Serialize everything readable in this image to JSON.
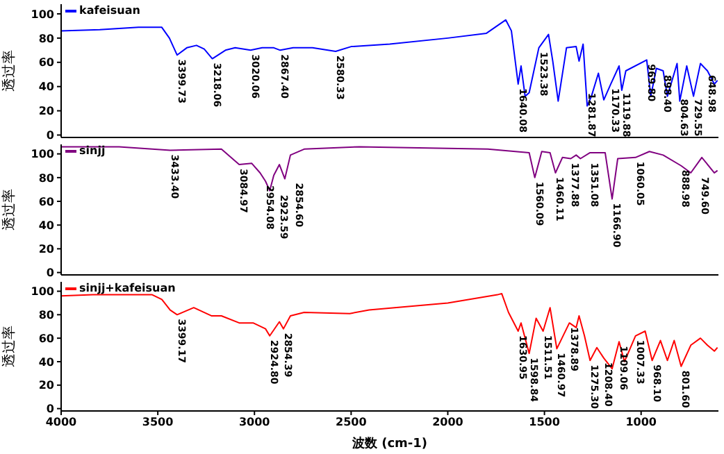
{
  "chart_data": [
    {
      "type": "line",
      "ylabel": "透过率",
      "legend": "top left",
      "tick_labels": "y",
      "marker": "none",
      "xlim": [
        4000,
        600
      ],
      "xticks": [
        4000,
        3500,
        3000,
        2500,
        2000,
        1500,
        1000
      ],
      "ylim": [
        -2,
        108
      ],
      "yticks": [
        0,
        20,
        40,
        60,
        80,
        100
      ],
      "series": [
        {
          "name": "kafeisuan",
          "color": "#0000ff",
          "x": [
            4000,
            3800,
            3600,
            3480,
            3440,
            3400,
            3350,
            3300,
            3260,
            3218,
            3150,
            3100,
            3020,
            2960,
            2900,
            2867,
            2800,
            2700,
            2580,
            2500,
            2300,
            2000,
            1800,
            1700,
            1671,
            1636,
            1621,
            1600,
            1579,
            1529,
            1479,
            1457,
            1429,
            1386,
            1336,
            1321,
            1300,
            1279,
            1257,
            1221,
            1193,
            1157,
            1114,
            1100,
            1079,
            971,
            950,
            921,
            886,
            864,
            814,
            800,
            764,
            729,
            693,
            657,
            621,
            605
          ],
          "values": [
            86,
            87,
            89,
            89,
            80,
            66,
            72,
            74,
            71,
            63,
            70,
            72,
            70,
            72,
            72,
            70,
            72,
            72,
            69,
            73,
            75,
            80,
            84,
            95,
            86,
            42,
            57,
            32,
            35,
            72,
            83,
            61,
            28,
            72,
            73,
            61,
            75,
            24,
            32,
            51,
            29,
            42,
            57,
            37,
            53,
            62,
            32,
            55,
            53,
            32,
            59,
            28,
            57,
            32,
            59,
            53,
            42,
            45
          ]
        }
      ],
      "annotations": [
        {
          "text": "3399.73",
          "x": 3400,
          "y": 66
        },
        {
          "text": "3218.06",
          "x": 3218,
          "y": 63
        },
        {
          "text": "3020.06",
          "x": 3020,
          "y": 70
        },
        {
          "text": "2867.40",
          "x": 2867,
          "y": 70
        },
        {
          "text": "2580.33",
          "x": 2580,
          "y": 69
        },
        {
          "text": "1640.08",
          "x": 1636,
          "y": 42
        },
        {
          "text": "1523.38",
          "x": 1529,
          "y": 72
        },
        {
          "text": "1281.87",
          "x": 1279,
          "y": 24
        },
        {
          "text": "1170.33",
          "x": 1157,
          "y": 42
        },
        {
          "text": "1119.88",
          "x": 1100,
          "y": 37
        },
        {
          "text": "969.80",
          "x": 971,
          "y": 62
        },
        {
          "text": "898.40",
          "x": 886,
          "y": 53
        },
        {
          "text": "804.63",
          "x": 800,
          "y": 28
        },
        {
          "text": "729.55",
          "x": 729,
          "y": 32
        },
        {
          "text": "648.98",
          "x": 657,
          "y": 53
        }
      ]
    },
    {
      "type": "line",
      "ylabel": "透过率",
      "legend": "top left",
      "tick_labels": "y",
      "marker": "none",
      "xlim": [
        4000,
        600
      ],
      "xticks": [
        4000,
        3500,
        3000,
        2500,
        2000,
        1500,
        1000
      ],
      "ylim": [
        -2,
        108
      ],
      "yticks": [
        0,
        20,
        40,
        60,
        80,
        100
      ],
      "series": [
        {
          "name": "sinjj",
          "color": "#800080",
          "x": [
            4000,
            3700,
            3436,
            3171,
            3079,
            3014,
            2971,
            2943,
            2921,
            2900,
            2871,
            2843,
            2814,
            2743,
            2457,
            1793,
            1579,
            1550,
            1514,
            1471,
            1443,
            1407,
            1364,
            1336,
            1314,
            1264,
            1186,
            1150,
            1121,
            1029,
            957,
            886,
            793,
            743,
            686,
            621,
            605
          ],
          "values": [
            106,
            106,
            103,
            104,
            91,
            92,
            84,
            77,
            69,
            82,
            91,
            79,
            99,
            104,
            106,
            104,
            101,
            80,
            102,
            101,
            84,
            97,
            96,
            99,
            96,
            101,
            101,
            62,
            96,
            97,
            102,
            99,
            90,
            84,
            97,
            84,
            86
          ]
        }
      ],
      "annotations": [
        {
          "text": "3433.40",
          "x": 3436,
          "y": 103
        },
        {
          "text": "3084.97",
          "x": 3079,
          "y": 91
        },
        {
          "text": "2954.08",
          "x": 2943,
          "y": 77
        },
        {
          "text": "2923.59",
          "x": 2921,
          "y": 69
        },
        {
          "text": "2854.60",
          "x": 2843,
          "y": 79
        },
        {
          "text": "1560.09",
          "x": 1550,
          "y": 80
        },
        {
          "text": "1460.11",
          "x": 1443,
          "y": 84
        },
        {
          "text": "1377.88",
          "x": 1364,
          "y": 96
        },
        {
          "text": "1351.08",
          "x": 1314,
          "y": 96
        },
        {
          "text": "1166.90",
          "x": 1150,
          "y": 62
        },
        {
          "text": "1060.05",
          "x": 1029,
          "y": 97
        },
        {
          "text": "888.98",
          "x": 793,
          "y": 90
        },
        {
          "text": "749.60",
          "x": 743,
          "y": 84
        }
      ]
    },
    {
      "type": "line",
      "xlabel": "波数 (cm-1)",
      "ylabel": "透过率",
      "legend": "top left",
      "marker": "none",
      "xlim": [
        4000,
        600
      ],
      "xticks": [
        4000,
        3500,
        3000,
        2500,
        2000,
        1500,
        1000
      ],
      "ylim": [
        -2,
        108
      ],
      "yticks": [
        0,
        20,
        40,
        60,
        80,
        100
      ],
      "series": [
        {
          "name": "sinjj+kafeisuan",
          "color": "#ff0000",
          "x": [
            4000,
            3836,
            3529,
            3479,
            3436,
            3400,
            3314,
            3221,
            3171,
            3079,
            3007,
            2943,
            2921,
            2871,
            2850,
            2814,
            2743,
            2507,
            2407,
            2000,
            1743,
            1721,
            1686,
            1636,
            1621,
            1579,
            1543,
            1507,
            1471,
            1436,
            1371,
            1336,
            1321,
            1293,
            1264,
            1229,
            1193,
            1150,
            1114,
            1086,
            1029,
            979,
            943,
            900,
            864,
            829,
            793,
            743,
            693,
            657,
            621,
            605
          ],
          "values": [
            96,
            97,
            97,
            93,
            84,
            80,
            86,
            79,
            79,
            73,
            73,
            68,
            62,
            74,
            68,
            79,
            82,
            81,
            84,
            90,
            97,
            98,
            82,
            66,
            73,
            47,
            77,
            66,
            86,
            51,
            73,
            69,
            79,
            62,
            41,
            52,
            43,
            34,
            57,
            40,
            62,
            66,
            41,
            58,
            41,
            58,
            36,
            54,
            60,
            54,
            49,
            52
          ]
        }
      ],
      "annotations": [
        {
          "text": "3399.17",
          "x": 3400,
          "y": 80
        },
        {
          "text": "2924.80",
          "x": 2921,
          "y": 62
        },
        {
          "text": "2854.39",
          "x": 2850,
          "y": 68
        },
        {
          "text": "1630.95",
          "x": 1636,
          "y": 66
        },
        {
          "text": "1598.84",
          "x": 1579,
          "y": 47
        },
        {
          "text": "1511.51",
          "x": 1507,
          "y": 66
        },
        {
          "text": "1460.97",
          "x": 1436,
          "y": 51
        },
        {
          "text": "1378.89",
          "x": 1371,
          "y": 73
        },
        {
          "text": "1275.30",
          "x": 1264,
          "y": 41
        },
        {
          "text": "1208.40",
          "x": 1193,
          "y": 43
        },
        {
          "text": "1109.06",
          "x": 1114,
          "y": 57
        },
        {
          "text": "1007.33",
          "x": 1029,
          "y": 62
        },
        {
          "text": "968.10",
          "x": 943,
          "y": 41
        },
        {
          "text": "801.60",
          "x": 793,
          "y": 36
        }
      ]
    }
  ]
}
